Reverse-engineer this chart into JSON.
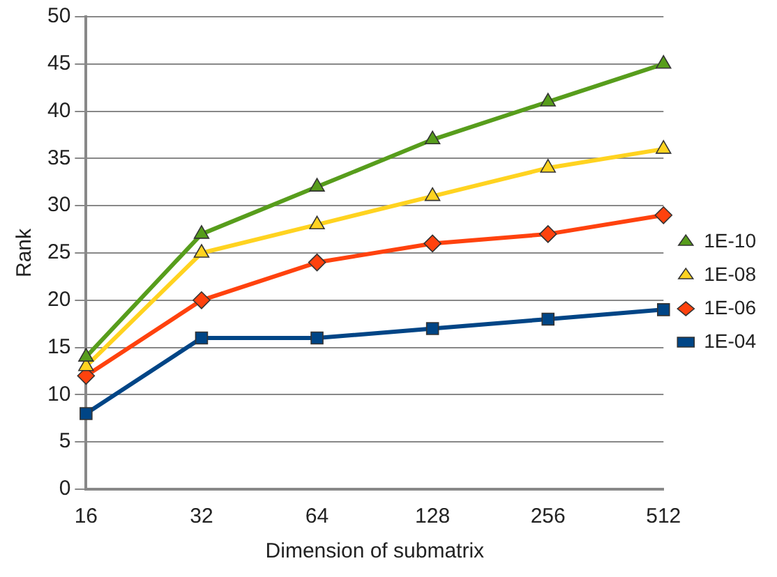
{
  "chart_data": {
    "type": "line",
    "xlabel": "Dimension of submatrix",
    "ylabel": "Rank",
    "categories": [
      "16",
      "32",
      "64",
      "128",
      "256",
      "512"
    ],
    "series": [
      {
        "name": "1E-10",
        "color": "#579d1c",
        "marker": "triangle",
        "values": [
          14,
          27,
          32,
          37,
          41,
          45
        ]
      },
      {
        "name": "1E-08",
        "color": "#ffd320",
        "marker": "triangle",
        "values": [
          13,
          25,
          28,
          31,
          34,
          36
        ]
      },
      {
        "name": "1E-06",
        "color": "#ff420e",
        "marker": "diamond",
        "values": [
          12,
          20,
          24,
          26,
          27,
          29
        ]
      },
      {
        "name": "1E-04",
        "color": "#004586",
        "marker": "square",
        "values": [
          8,
          16,
          16,
          17,
          18,
          19
        ]
      }
    ],
    "ylim": [
      0,
      50
    ],
    "yticks": [
      0,
      5,
      10,
      15,
      20,
      25,
      30,
      35,
      40,
      45,
      50
    ],
    "grid": "y",
    "legend": "right",
    "line_style": "solid"
  }
}
